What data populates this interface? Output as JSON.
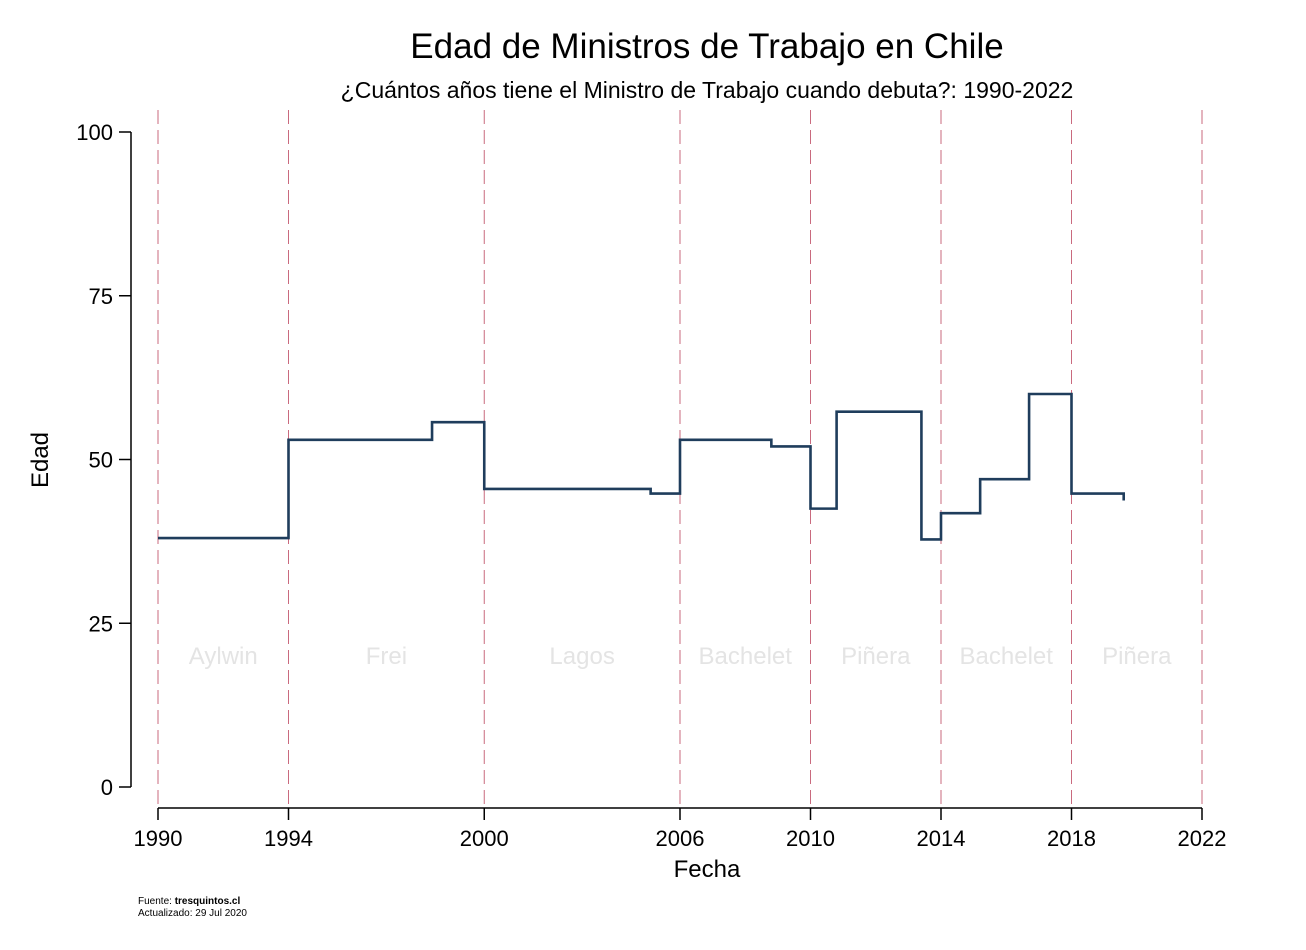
{
  "chart_data": {
    "type": "line",
    "title": "Edad de Ministros de Trabajo en Chile",
    "subtitle": "¿Cuántos años tiene el Ministro de Trabajo cuando debuta?: 1990-2022",
    "xlabel": "Fecha",
    "ylabel": "Edad",
    "xlim": [
      1990,
      2022
    ],
    "ylim": [
      0,
      100
    ],
    "xticks": [
      1990,
      1994,
      2000,
      2006,
      2010,
      2014,
      2018,
      2022
    ],
    "yticks": [
      0,
      25,
      50,
      75,
      100
    ],
    "grid": false,
    "line_color": "#1f3d5c",
    "vline_color": "#c96a7e",
    "step_series": [
      {
        "x": 1990.0,
        "y": 38.0
      },
      {
        "x": 1994.0,
        "y": 53.0
      },
      {
        "x": 1998.4,
        "y": 55.7
      },
      {
        "x": 2000.0,
        "y": 45.5
      },
      {
        "x": 2005.1,
        "y": 44.8
      },
      {
        "x": 2006.0,
        "y": 53.0
      },
      {
        "x": 2008.8,
        "y": 52.0
      },
      {
        "x": 2010.0,
        "y": 42.5
      },
      {
        "x": 2010.8,
        "y": 57.3
      },
      {
        "x": 2013.4,
        "y": 37.8
      },
      {
        "x": 2014.0,
        "y": 41.8
      },
      {
        "x": 2015.2,
        "y": 47.0
      },
      {
        "x": 2016.7,
        "y": 60.0
      },
      {
        "x": 2018.0,
        "y": 44.8
      },
      {
        "x": 2019.6,
        "y": 44.2
      }
    ],
    "vlines": [
      1990,
      1994,
      2000,
      2006,
      2010,
      2014,
      2018,
      2022
    ],
    "periods": [
      {
        "label": "Aylwin",
        "start": 1990,
        "end": 1994
      },
      {
        "label": "Frei",
        "start": 1994,
        "end": 2000
      },
      {
        "label": "Lagos",
        "start": 2000,
        "end": 2006
      },
      {
        "label": "Bachelet",
        "start": 2006,
        "end": 2010
      },
      {
        "label": "Piñera",
        "start": 2010,
        "end": 2014
      },
      {
        "label": "Bachelet",
        "start": 2014,
        "end": 2018
      },
      {
        "label": "Piñera",
        "start": 2018,
        "end": 2022
      }
    ],
    "period_label_y": 20
  },
  "footer": {
    "source_label": "Fuente: ",
    "source": "tresquintos.cl",
    "updated": "Actualizado: 29 Jul 2020"
  }
}
